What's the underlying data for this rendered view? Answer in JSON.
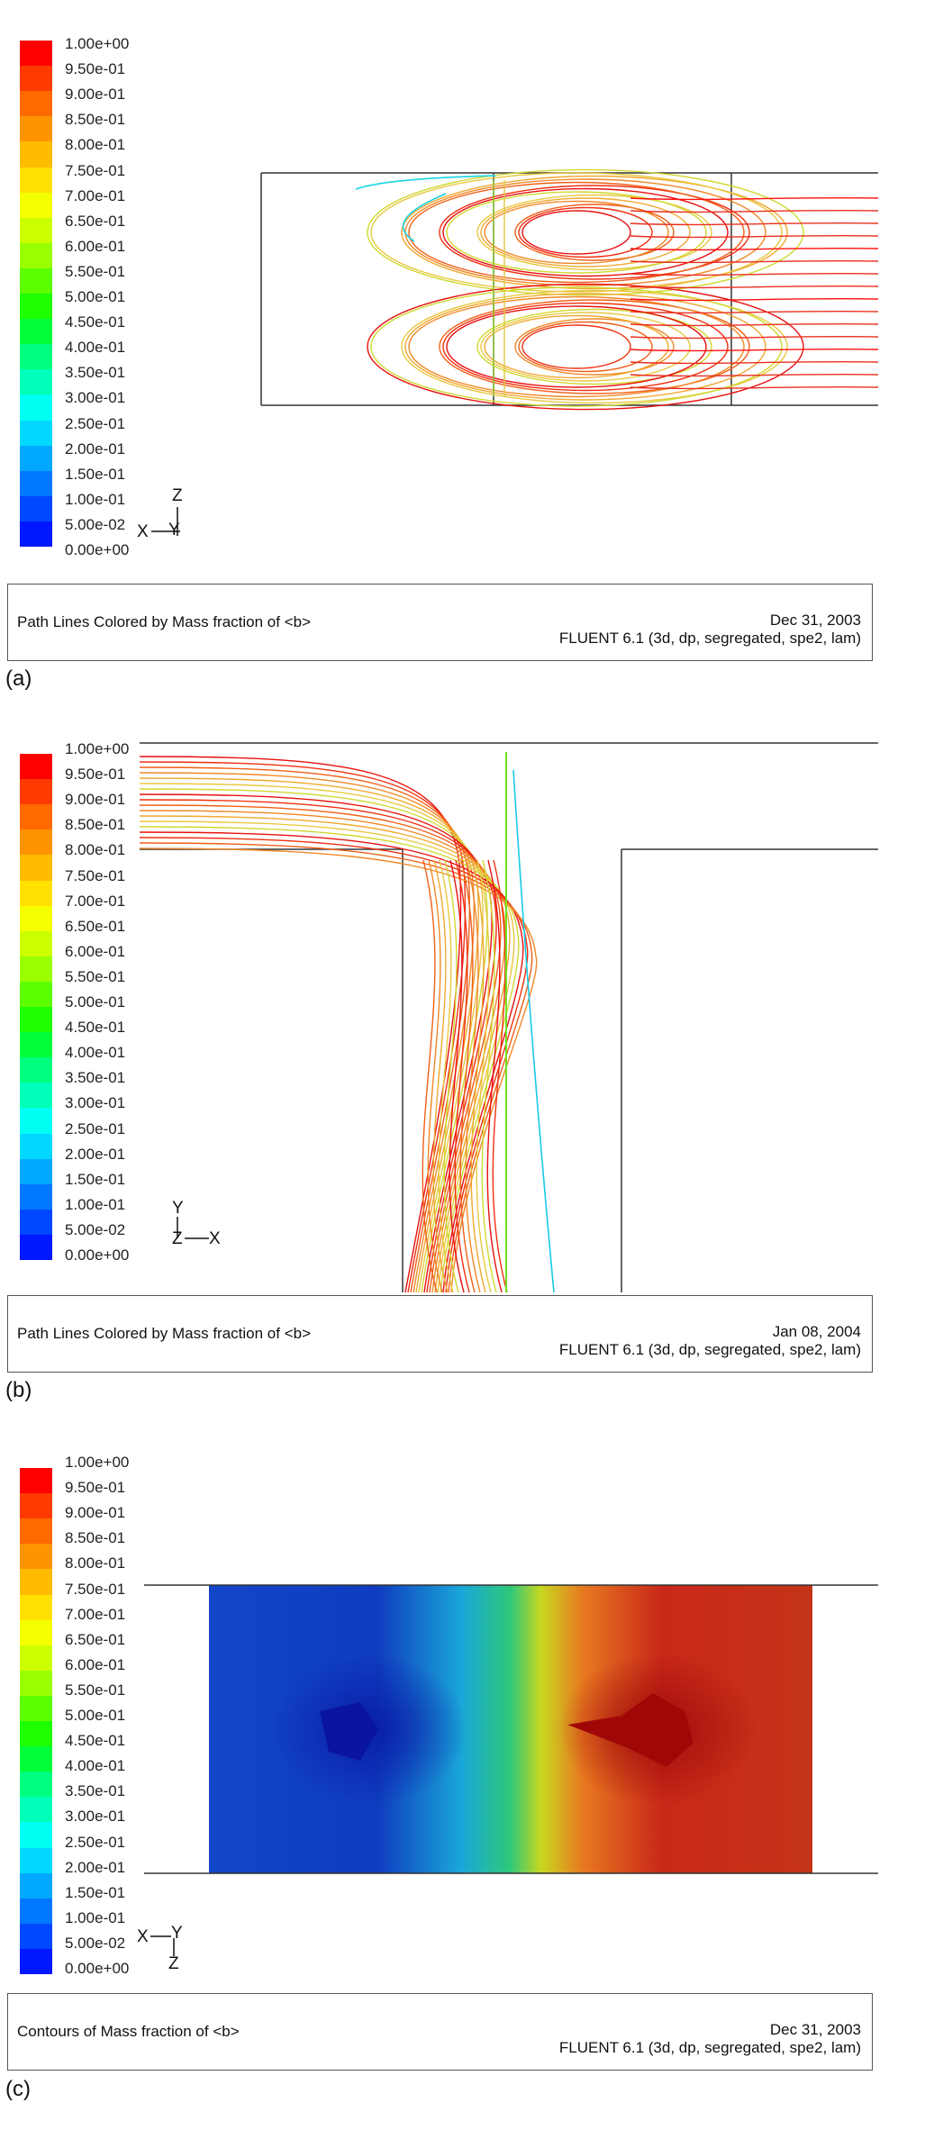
{
  "colorbar": {
    "ticks": [
      "1.00e+00",
      "9.50e-01",
      "9.00e-01",
      "8.50e-01",
      "8.00e-01",
      "7.50e-01",
      "7.00e-01",
      "6.50e-01",
      "6.00e-01",
      "5.50e-01",
      "5.00e-01",
      "4.50e-01",
      "4.00e-01",
      "3.50e-01",
      "3.00e-01",
      "2.50e-01",
      "2.00e-01",
      "1.50e-01",
      "1.00e-01",
      "5.00e-02",
      "0.00e+00"
    ],
    "colors": [
      "#ff0000",
      "#ff3a00",
      "#ff6a00",
      "#ff9400",
      "#ffbb00",
      "#ffe000",
      "#f4ff00",
      "#cbff00",
      "#99ff00",
      "#5cff00",
      "#1eff00",
      "#00ff38",
      "#00ff80",
      "#00ffb8",
      "#00fff2",
      "#00d8ff",
      "#00a8ff",
      "#0078ff",
      "#0048ff",
      "#0018ff"
    ]
  },
  "panels": [
    {
      "id": "a",
      "panel_label": "(a)",
      "caption": "Path Lines Colored by Mass fraction of <b>",
      "date": "Dec 31, 2003",
      "version": "FLUENT 6.1 (3d, dp, segregated, spe2, lam)",
      "axes": {
        "up": "Z",
        "right": "X",
        "down": "Y"
      }
    },
    {
      "id": "b",
      "panel_label": "(b)",
      "caption": "Path Lines Colored by Mass fraction of <b>",
      "date": "Jan 08, 2004",
      "version": "FLUENT 6.1 (3d, dp, segregated, spe2, lam)",
      "axes": {
        "up": "Y",
        "left": "Z",
        "right": "X"
      }
    },
    {
      "id": "c",
      "panel_label": "(c)",
      "caption": "Contours of Mass fraction of <b>",
      "date": "Dec 31, 2003",
      "version": "FLUENT 6.1 (3d, dp, segregated, spe2, lam)",
      "axes": {
        "left": "X",
        "right": "Y",
        "down": "Z"
      }
    }
  ]
}
